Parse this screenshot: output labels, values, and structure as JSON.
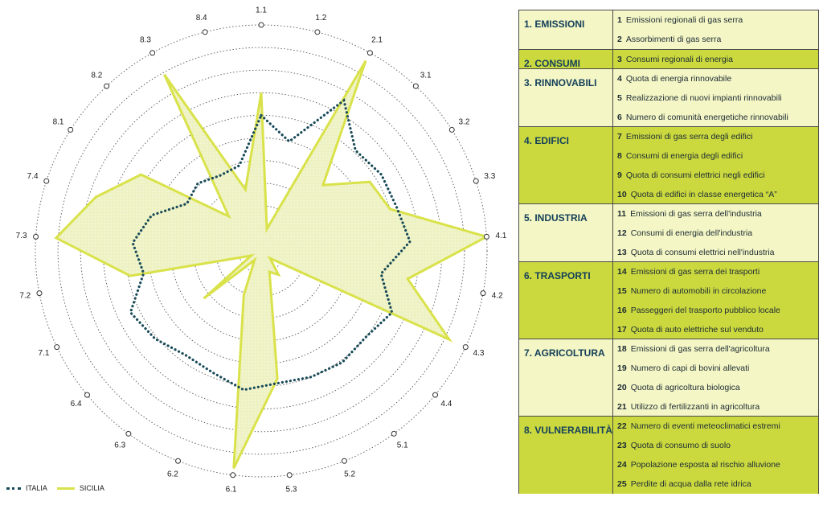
{
  "chart_data": {
    "type": "radar",
    "axes": [
      "1.1",
      "1.2",
      "2.1",
      "3.1",
      "3.2",
      "3.3",
      "4.1",
      "4.2",
      "4.3",
      "4.4",
      "5.1",
      "5.2",
      "5.3",
      "6.1",
      "6.2",
      "6.3",
      "6.4",
      "7.1",
      "7.2",
      "7.3",
      "7.4",
      "8.1",
      "8.2",
      "8.3",
      "8.4"
    ],
    "rings": 10,
    "range": [
      0,
      10
    ],
    "grid": true,
    "legend_position": "bottom-left",
    "series": [
      {
        "name": "ITALIA",
        "values": [
          6.0,
          5.0,
          7.6,
          6.1,
          6.3,
          6.3,
          6.6,
          5.4,
          6.4,
          6.0,
          6.1,
          6.0,
          5.9,
          6.2,
          5.8,
          5.7,
          6.1,
          6.4,
          5.3,
          5.7,
          5.1,
          3.9,
          4.1,
          3.8,
          3.9
        ]
      },
      {
        "name": "SICILIA",
        "values": [
          7.0,
          1.0,
          9.6,
          4.0,
          5.7,
          6.0,
          10.0,
          6.6,
          9.2,
          0.5,
          1.3,
          1.0,
          5.7,
          9.7,
          2.1,
          0.5,
          3.3,
          0.5,
          5.9,
          9.1,
          7.7,
          6.3,
          2.1,
          8.9,
          2.8
        ]
      }
    ]
  },
  "legend": {
    "italia": "ITALIA",
    "sicilia": "SICILIA"
  },
  "colors": {
    "italia": "#184a58",
    "sicilia": "#d9e24a",
    "sicilia_fill": "#eef2c2",
    "panel_light": "#f4f6c5",
    "panel_dark": "#cbd93f",
    "title_text": "#14405a"
  },
  "groups": [
    {
      "title": "1. EMISSIONI",
      "items": [
        {
          "num": "1",
          "label": "Emissioni regionali di gas serra"
        },
        {
          "num": "2",
          "label": "Assorbimenti di gas serra"
        }
      ]
    },
    {
      "title": "2. CONSUMI",
      "items": [
        {
          "num": "3",
          "label": "Consumi regionali di energia"
        }
      ]
    },
    {
      "title": "3. RINNOVABILI",
      "items": [
        {
          "num": "4",
          "label": "Quota di energia rinnovabile"
        },
        {
          "num": "5",
          "label": "Realizzazione di nuovi impianti rinnovabili"
        },
        {
          "num": "6",
          "label": "Numero di comunità energetiche rinnovabili"
        }
      ]
    },
    {
      "title": "4. EDIFICI",
      "items": [
        {
          "num": "7",
          "label": "Emissioni di gas serra degli edifici"
        },
        {
          "num": "8",
          "label": "Consumi di energia degli edifici"
        },
        {
          "num": "9",
          "label": "Quota di consumi elettrici negli edifici"
        },
        {
          "num": "10",
          "label": "Quota di edifici in classe energetica “A”"
        }
      ]
    },
    {
      "title": "5. INDUSTRIA",
      "items": [
        {
          "num": "11",
          "label": "Emissioni di gas serra dell'industria"
        },
        {
          "num": "12",
          "label": "Consumi di energia dell'industria"
        },
        {
          "num": "13",
          "label": "Quota di consumi elettrici nell'industria"
        }
      ]
    },
    {
      "title": "6. TRASPORTI",
      "items": [
        {
          "num": "14",
          "label": "Emissioni di gas serra dei trasporti"
        },
        {
          "num": "15",
          "label": "Numero di automobili in circolazione"
        },
        {
          "num": "16",
          "label": "Passeggeri del trasporto pubblico locale"
        },
        {
          "num": "17",
          "label": "Quota di auto elettriche sul venduto"
        }
      ]
    },
    {
      "title": "7. AGRICOLTURA",
      "items": [
        {
          "num": "18",
          "label": "Emissioni di gas serra dell'agricoltura"
        },
        {
          "num": "19",
          "label": "Numero di capi di bovini allevati"
        },
        {
          "num": "20",
          "label": "Quota di agricoltura biologica"
        },
        {
          "num": "21",
          "label": "Utilizzo di fertilizzanti in agricoltura"
        }
      ]
    },
    {
      "title": "8. VULNERABILITÀ",
      "items": [
        {
          "num": "22",
          "label": "Numero di eventi meteoclimatici estremi"
        },
        {
          "num": "23",
          "label": "Quota di consumo di suolo"
        },
        {
          "num": "24",
          "label": "Popolazione esposta al rischio alluvione"
        },
        {
          "num": "25",
          "label": "Perdite di acqua dalla rete idrica"
        }
      ]
    }
  ]
}
